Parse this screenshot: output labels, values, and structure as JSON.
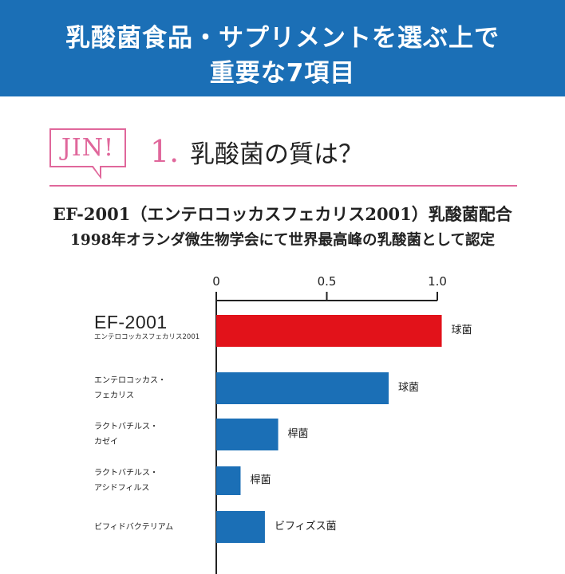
{
  "header": {
    "line1": "乳酸菌食品・サプリメントを選ぶ上で",
    "line2": "重要な7項目"
  },
  "section": {
    "badge": "JIN!",
    "number": "1.",
    "title": "乳酸菌の質は？"
  },
  "subtitle_1": "EF-2001（エンテロコッカスフェカリス2001）乳酸菌配合",
  "subtitle_2": "1998年オランダ微生物学会にて世界最高峰の乳酸菌として認定",
  "colors": {
    "banner": "#1b6fb6",
    "accent_pink": "#e0679b",
    "highlight_bar": "#e2121a",
    "bar": "#1b6fb6"
  },
  "chart_data": {
    "type": "bar",
    "orientation": "horizontal",
    "xlim": [
      0,
      1.0
    ],
    "tick_labels": [
      "0",
      "0.5",
      "1.0"
    ],
    "ticks": [
      0,
      0.5,
      1.0
    ],
    "rows": [
      {
        "label": "EF-2001",
        "sublabel": "エンテロコッカスフェカリス2001",
        "value": 1.02,
        "bar_label": "球菌",
        "highlight": true
      },
      {
        "label_lines": [
          "エンテロコッカス・",
          "フェカリス"
        ],
        "value": 0.78,
        "bar_label": "球菌",
        "highlight": false
      },
      {
        "label_lines": [
          "ラクトバチルス・",
          "カゼイ"
        ],
        "value": 0.28,
        "bar_label": "桿菌",
        "highlight": false
      },
      {
        "label_lines": [
          "ラクトバチルス・",
          "アシドフィルス"
        ],
        "value": 0.11,
        "bar_label": "桿菌",
        "highlight": false
      },
      {
        "label_lines": [
          "ビフィドバクテリアム"
        ],
        "value": 0.22,
        "bar_label": "ビフィズス菌",
        "highlight": false
      }
    ]
  }
}
